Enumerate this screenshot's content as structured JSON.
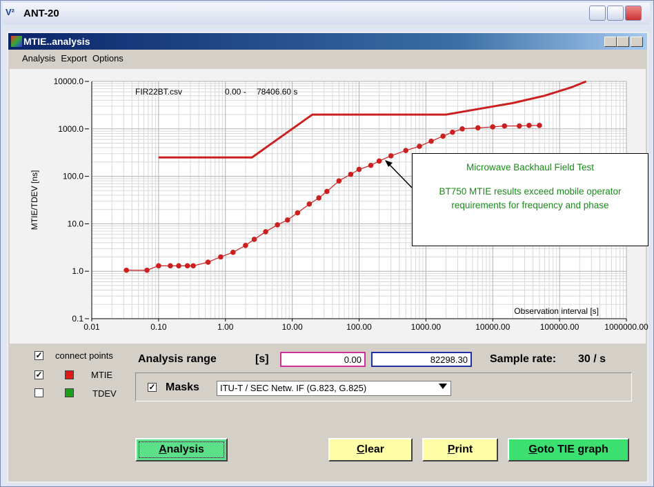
{
  "window": {
    "title": "ANT-20"
  },
  "inner_window": {
    "title": "MTIE..analysis"
  },
  "menu": [
    "Analysis",
    "Export",
    "Options"
  ],
  "chart": {
    "type": "line",
    "file": "FIR22BT.csv",
    "range_start": "0.00 -",
    "range_end": "78406.60 s",
    "ylabel": "MTIE/TDEV [ns]",
    "xlabel": "Observation interval  [s]",
    "xscale": "log",
    "yscale": "log",
    "grid": true,
    "xlim": [
      0.01,
      1000000
    ],
    "ylim": [
      0.1,
      10000
    ],
    "xticks": [
      {
        "value": 0.01,
        "label": "0.01"
      },
      {
        "value": 0.1,
        "label": "0.10"
      },
      {
        "value": 1,
        "label": "1.00"
      },
      {
        "value": 10,
        "label": "10.00"
      },
      {
        "value": 100,
        "label": "100.00"
      },
      {
        "value": 1000,
        "label": "1000.00"
      },
      {
        "value": 10000,
        "label": "10000.00"
      },
      {
        "value": 100000,
        "label": "100000.00"
      },
      {
        "value": 1000000,
        "label": "1000000.00"
      }
    ],
    "yticks": [
      {
        "value": 0.1,
        "label": "0.1"
      },
      {
        "value": 1,
        "label": "1.0"
      },
      {
        "value": 10,
        "label": "10.0"
      },
      {
        "value": 100,
        "label": "100.0"
      },
      {
        "value": 1000,
        "label": "1000.0"
      },
      {
        "value": 10000,
        "label": "10000.0"
      }
    ],
    "series": [
      {
        "color": "#cc2020",
        "markers": false,
        "x": [
          0.1,
          2.5,
          20,
          2000,
          5000,
          20000,
          60000,
          150000,
          250000
        ],
        "values": [
          250,
          250,
          2000,
          2000,
          2500,
          3500,
          5000,
          7500,
          10000
        ]
      },
      {
        "color": "#cc2020",
        "markers": true,
        "x": [
          0.033,
          0.067,
          0.1,
          0.15,
          0.2,
          0.27,
          0.33,
          0.55,
          0.85,
          1.3,
          2,
          2.7,
          4,
          6,
          8.5,
          12,
          18,
          25,
          33,
          50,
          75,
          100,
          150,
          200,
          300,
          500,
          800,
          1200,
          1800,
          2500,
          3500,
          6000,
          10000,
          15000,
          25000,
          35000,
          50000
        ],
        "values": [
          1.05,
          1.05,
          1.3,
          1.3,
          1.3,
          1.3,
          1.3,
          1.55,
          2,
          2.5,
          3.5,
          4.7,
          6.8,
          9.5,
          12,
          17,
          26,
          35,
          48,
          80,
          110,
          140,
          170,
          210,
          270,
          350,
          430,
          550,
          700,
          850,
          1000,
          1050,
          1100,
          1150,
          1150,
          1180,
          1180
        ]
      }
    ]
  },
  "annotation": {
    "heading": "Microwave Backhaul Field Test",
    "text": "BT750 MTIE results exceed mobile operator requirements for frequency and phase"
  },
  "controls": {
    "connect_points": "connect points",
    "mtie": "MTIE",
    "tdev": "TDEV",
    "analysis_range": "Analysis range",
    "unit": "[s]",
    "range_from": "0.00",
    "range_to": "82298.30",
    "sample_rate_label": "Sample rate:",
    "sample_rate": "30 / s",
    "masks": "Masks",
    "mask_select": "ITU-T / SEC Netw. IF (G.823, G.825)"
  },
  "buttons": [
    "Analysis",
    "Clear",
    "Print",
    "Goto TIE graph"
  ]
}
